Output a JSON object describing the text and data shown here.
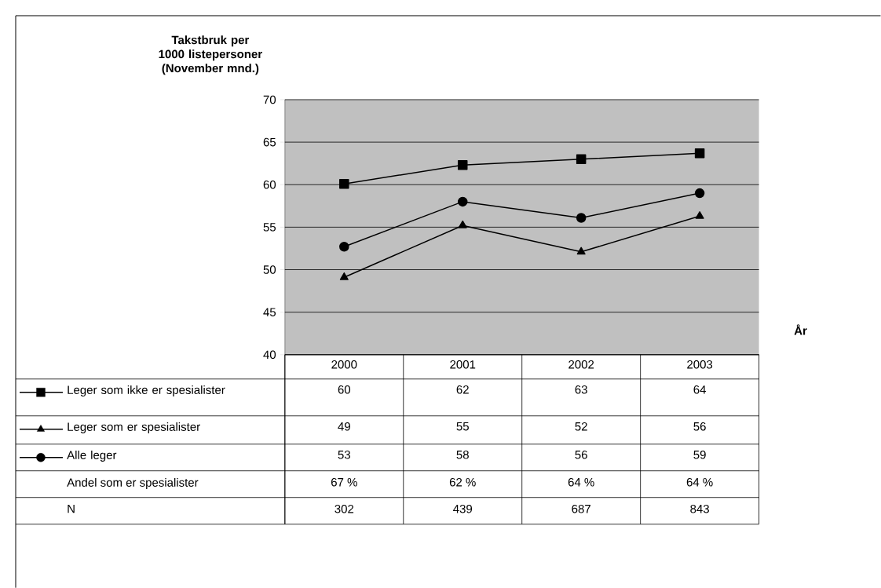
{
  "chart_data": {
    "type": "line",
    "ylabel": "Takstbruk per 1000 listepersoner (November mnd.)",
    "xlabel": "År",
    "categories": [
      "2000",
      "2001",
      "2002",
      "2003"
    ],
    "series": [
      {
        "name": "Leger som ikke er spesialister",
        "color": "#000000",
        "marker": "square",
        "values": [
          60.1,
          62.3,
          63.0,
          63.7
        ],
        "value_labels": [
          "60",
          "62",
          "63",
          "64"
        ]
      },
      {
        "name": "Leger som er spesialister",
        "color": "#000000",
        "marker": "triangle",
        "values": [
          49.1,
          55.2,
          52.1,
          56.3
        ],
        "value_labels": [
          "49",
          "55",
          "52",
          "56"
        ]
      },
      {
        "name": "Alle leger",
        "color": "#000000",
        "marker": "circle",
        "values": [
          52.7,
          58.0,
          56.1,
          59.0
        ],
        "value_labels": [
          "53",
          "58",
          "56",
          "59"
        ]
      }
    ],
    "annotations": [
      "Andel som er spesialister",
      "67 %",
      "62 %",
      "64 %",
      "64 %",
      "N",
      "302",
      "439",
      "687",
      "843"
    ],
    "ylim": [
      40,
      70
    ],
    "yticks": [
      40,
      45,
      50,
      55,
      60,
      65,
      70
    ],
    "grid": "y",
    "legend": "bottom",
    "line_style": "solid"
  }
}
